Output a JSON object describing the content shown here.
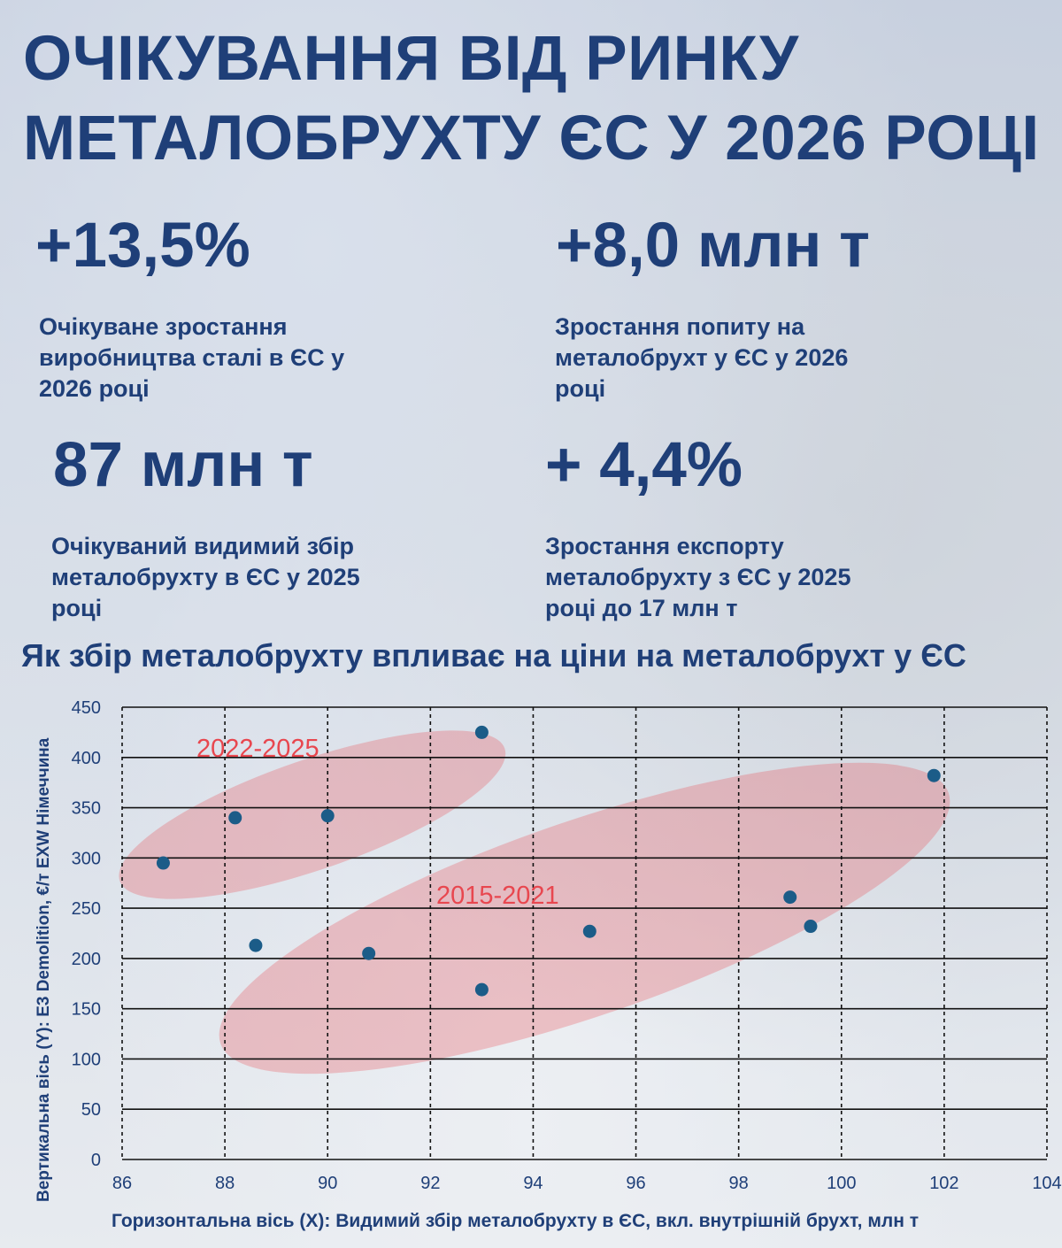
{
  "header": {
    "title": "ОЧІКУВАННЯ ВІД РИНКУ МЕТАЛОБРУХТУ ЄС У 2026 РОЦІ"
  },
  "stats": [
    {
      "value": "+13,5%",
      "description": "Очікуване зростання виробництва сталі в ЄС у 2026 році"
    },
    {
      "value": "+8,0 млн т",
      "description": "Зростання попиту на металобрухт у ЄС у 2026 році"
    },
    {
      "value": "87 млн т",
      "description": "Очікуваний видимий збір металобрухту в ЄС у 2025 році"
    },
    {
      "value": "+ 4,4%",
      "description": "Зростання експорту металобрухту з ЄС у 2025 році до 17 млн т"
    }
  ],
  "chart_title": "Як збір металобрухту впливає на ціни на металобрухт у ЄС",
  "chart_data": {
    "type": "scatter",
    "xlabel": "Горизонтальна вісь (X): Видимий збір металобрухту в ЄС, вкл. внутрішній брухт, млн т",
    "ylabel": "Вертикальна вісь (Y): E3 Demolition, €/т EXW Німеччина",
    "xlim": [
      86,
      104
    ],
    "ylim": [
      0,
      450
    ],
    "x_ticks": [
      86,
      88,
      90,
      92,
      94,
      96,
      98,
      100,
      102,
      104
    ],
    "y_ticks": [
      0,
      50,
      100,
      150,
      200,
      250,
      300,
      350,
      400,
      450
    ],
    "grid": true,
    "point_color": "#1b5c88",
    "points": [
      {
        "x": 86.8,
        "y": 295
      },
      {
        "x": 88.2,
        "y": 340
      },
      {
        "x": 90.0,
        "y": 342
      },
      {
        "x": 93.0,
        "y": 425
      },
      {
        "x": 88.6,
        "y": 213
      },
      {
        "x": 90.8,
        "y": 205
      },
      {
        "x": 93.0,
        "y": 169
      },
      {
        "x": 95.1,
        "y": 227
      },
      {
        "x": 99.0,
        "y": 261
      },
      {
        "x": 99.4,
        "y": 232
      },
      {
        "x": 101.8,
        "y": 382
      }
    ],
    "clusters": [
      {
        "label": "2022-2025",
        "color": "#e8474f"
      },
      {
        "label": "2015-2021",
        "color": "#e8474f"
      }
    ]
  }
}
